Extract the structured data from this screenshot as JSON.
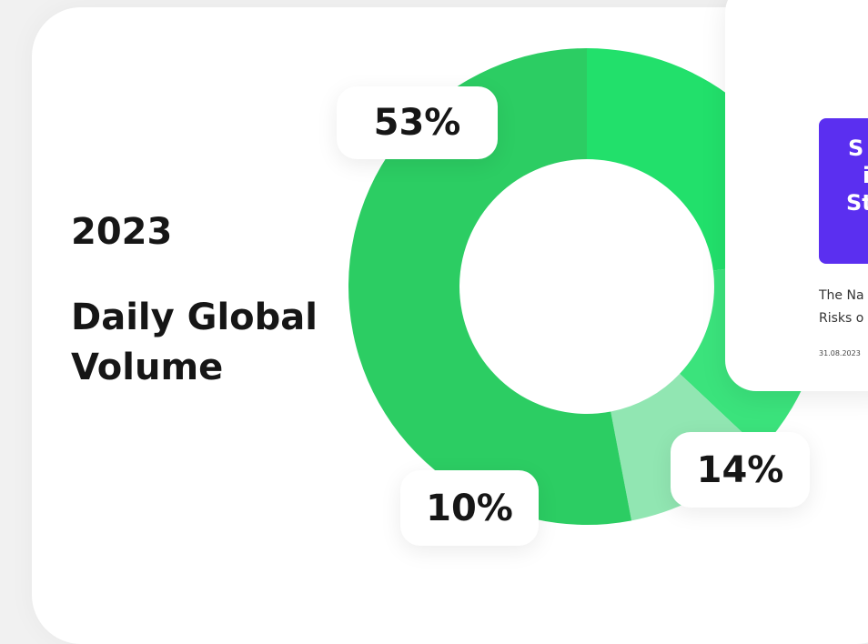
{
  "chart_data": {
    "type": "donut",
    "title": "2023",
    "subtitle": "Daily Global Volume",
    "values": [
      23,
      14,
      10,
      53
    ],
    "value_labels": [
      null,
      "14%",
      "10%",
      "53%"
    ],
    "colors": [
      "#22e06b",
      "#3be37c",
      "#91e6b2",
      "#2ccd63"
    ]
  },
  "article": {
    "image_text": [
      "S",
      "i",
      "St"
    ],
    "excerpt": [
      "The Na",
      "Risks o"
    ],
    "date": "31.08.2023"
  }
}
